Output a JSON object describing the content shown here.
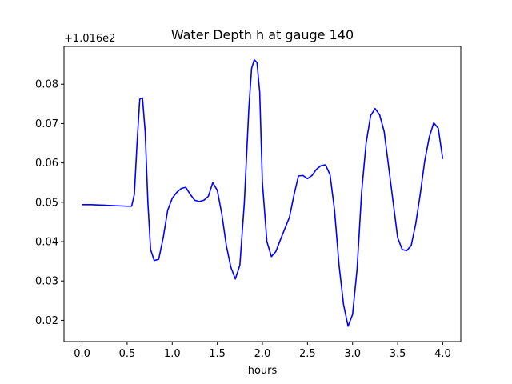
{
  "chart_data": {
    "type": "line",
    "title": "Water Depth h at gauge 140",
    "xlabel": "hours",
    "ylabel": "",
    "y_offset_label": "+1.016e2",
    "xlim": [
      -0.2,
      4.2
    ],
    "ylim": [
      0.0146,
      0.0896
    ],
    "x_ticks": [
      0.0,
      0.5,
      1.0,
      1.5,
      2.0,
      2.5,
      3.0,
      3.5,
      4.0
    ],
    "x_tick_labels": [
      "0.0",
      "0.5",
      "1.0",
      "1.5",
      "2.0",
      "2.5",
      "3.0",
      "3.5",
      "4.0"
    ],
    "y_ticks": [
      0.02,
      0.03,
      0.04,
      0.05,
      0.06,
      0.07,
      0.08
    ],
    "y_tick_labels": [
      "0.02",
      "0.03",
      "0.04",
      "0.05",
      "0.06",
      "0.07",
      "0.08"
    ],
    "grid": false,
    "line_color": "#0000ff",
    "series": [
      {
        "x": [
          0.0,
          0.1,
          0.2,
          0.3,
          0.4,
          0.5,
          0.55,
          0.58,
          0.61,
          0.64,
          0.67,
          0.7,
          0.73,
          0.76,
          0.8,
          0.85,
          0.9,
          0.95,
          1.0,
          1.05,
          1.1,
          1.15,
          1.2,
          1.25,
          1.3,
          1.35,
          1.4,
          1.45,
          1.5,
          1.55,
          1.6,
          1.65,
          1.7,
          1.75,
          1.8,
          1.85,
          1.88,
          1.91,
          1.94,
          1.97,
          2.0,
          2.05,
          2.1,
          2.15,
          2.2,
          2.3,
          2.35,
          2.4,
          2.45,
          2.5,
          2.55,
          2.6,
          2.65,
          2.7,
          2.75,
          2.8,
          2.85,
          2.9,
          2.95,
          3.0,
          3.05,
          3.1,
          3.15,
          3.2,
          3.25,
          3.3,
          3.35,
          3.4,
          3.45,
          3.5,
          3.55,
          3.6,
          3.65,
          3.7,
          3.75,
          3.8,
          3.85,
          3.9,
          3.95,
          4.0
        ],
        "y": [
          0.0494,
          0.0494,
          0.0493,
          0.0492,
          0.0491,
          0.049,
          0.049,
          0.052,
          0.065,
          0.0762,
          0.0765,
          0.068,
          0.05,
          0.038,
          0.0352,
          0.0355,
          0.041,
          0.048,
          0.051,
          0.0525,
          0.0535,
          0.0538,
          0.052,
          0.0505,
          0.0502,
          0.0505,
          0.0515,
          0.055,
          0.053,
          0.047,
          0.039,
          0.0335,
          0.0305,
          0.034,
          0.05,
          0.074,
          0.084,
          0.0862,
          0.0855,
          0.078,
          0.055,
          0.04,
          0.0362,
          0.0375,
          0.0405,
          0.0462,
          0.0518,
          0.0567,
          0.0568,
          0.056,
          0.0568,
          0.0584,
          0.0593,
          0.0595,
          0.057,
          0.048,
          0.034,
          0.024,
          0.0185,
          0.0215,
          0.033,
          0.0525,
          0.065,
          0.072,
          0.0738,
          0.0722,
          0.068,
          0.059,
          0.05,
          0.041,
          0.038,
          0.0377,
          0.039,
          0.0445,
          0.052,
          0.0605,
          0.0665,
          0.0702,
          0.0688,
          0.061
        ]
      }
    ]
  }
}
